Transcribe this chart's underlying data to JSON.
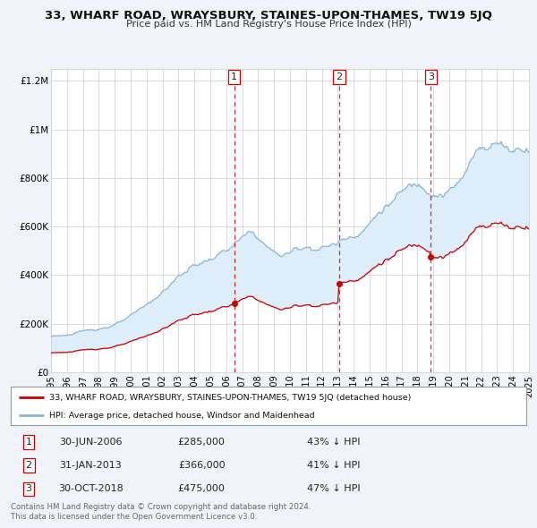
{
  "title": "33, WHARF ROAD, WRAYSBURY, STAINES-UPON-THAMES, TW19 5JQ",
  "subtitle": "Price paid vs. HM Land Registry's House Price Index (HPI)",
  "hpi_color": "#8ab4d4",
  "price_color": "#cc0000",
  "fill_color": "#ddeeff",
  "background_color": "#f0f4f8",
  "plot_bg_color": "#ffffff",
  "ylim": [
    0,
    1250000
  ],
  "yticks": [
    0,
    200000,
    400000,
    600000,
    800000,
    1000000,
    1200000
  ],
  "ytick_labels": [
    "£0",
    "£200K",
    "£400K",
    "£600K",
    "£800K",
    "£1M",
    "£1.2M"
  ],
  "xstart": 1995,
  "xend": 2025,
  "transactions": [
    {
      "label": "1",
      "date": "30-JUN-2006",
      "price": 285000,
      "pct": "43%",
      "x": 2006.5
    },
    {
      "label": "2",
      "date": "31-JAN-2013",
      "price": 366000,
      "pct": "41%",
      "x": 2013.083
    },
    {
      "label": "3",
      "date": "30-OCT-2018",
      "price": 475000,
      "pct": "47%",
      "x": 2018.833
    }
  ],
  "legend_line1": "33, WHARF ROAD, WRAYSBURY, STAINES-UPON-THAMES, TW19 5JQ (detached house)",
  "legend_line2": "HPI: Average price, detached house, Windsor and Maidenhead",
  "footer1": "Contains HM Land Registry data © Crown copyright and database right 2024.",
  "footer2": "This data is licensed under the Open Government Licence v3.0."
}
